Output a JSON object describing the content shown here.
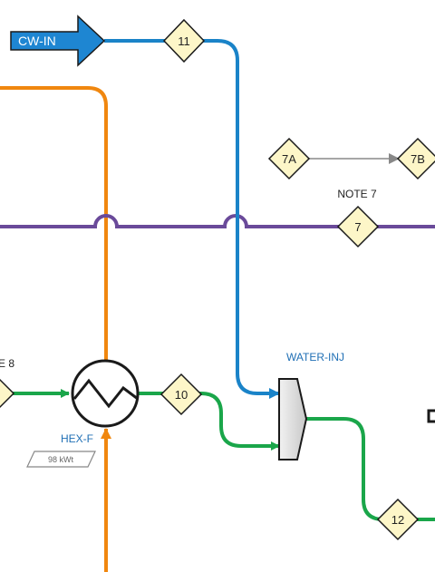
{
  "colors": {
    "cooling_water": "#1a83c8",
    "hot_oil": "#f0870f",
    "purple_line": "#6a4a9a",
    "green_line": "#1aa64a",
    "tag_fill": "#fdf6c8",
    "signal": "#888888"
  },
  "inlet": {
    "label": "CW-IN",
    "icon": "arrow-right-icon"
  },
  "streams": [
    {
      "id": "11"
    },
    {
      "id": "7A"
    },
    {
      "id": "7B"
    },
    {
      "id": "7"
    },
    {
      "id": "10"
    },
    {
      "id": "12"
    }
  ],
  "notes": {
    "note_7": "NOTE 7",
    "note_8_partial": "E 8"
  },
  "equipment": {
    "hex": {
      "tag": "HEX-F",
      "duty": "98 kWt",
      "icon": "heat-exchanger-icon"
    },
    "mixer": {
      "tag": "WATER-INJ",
      "icon": "mixer-icon"
    }
  }
}
